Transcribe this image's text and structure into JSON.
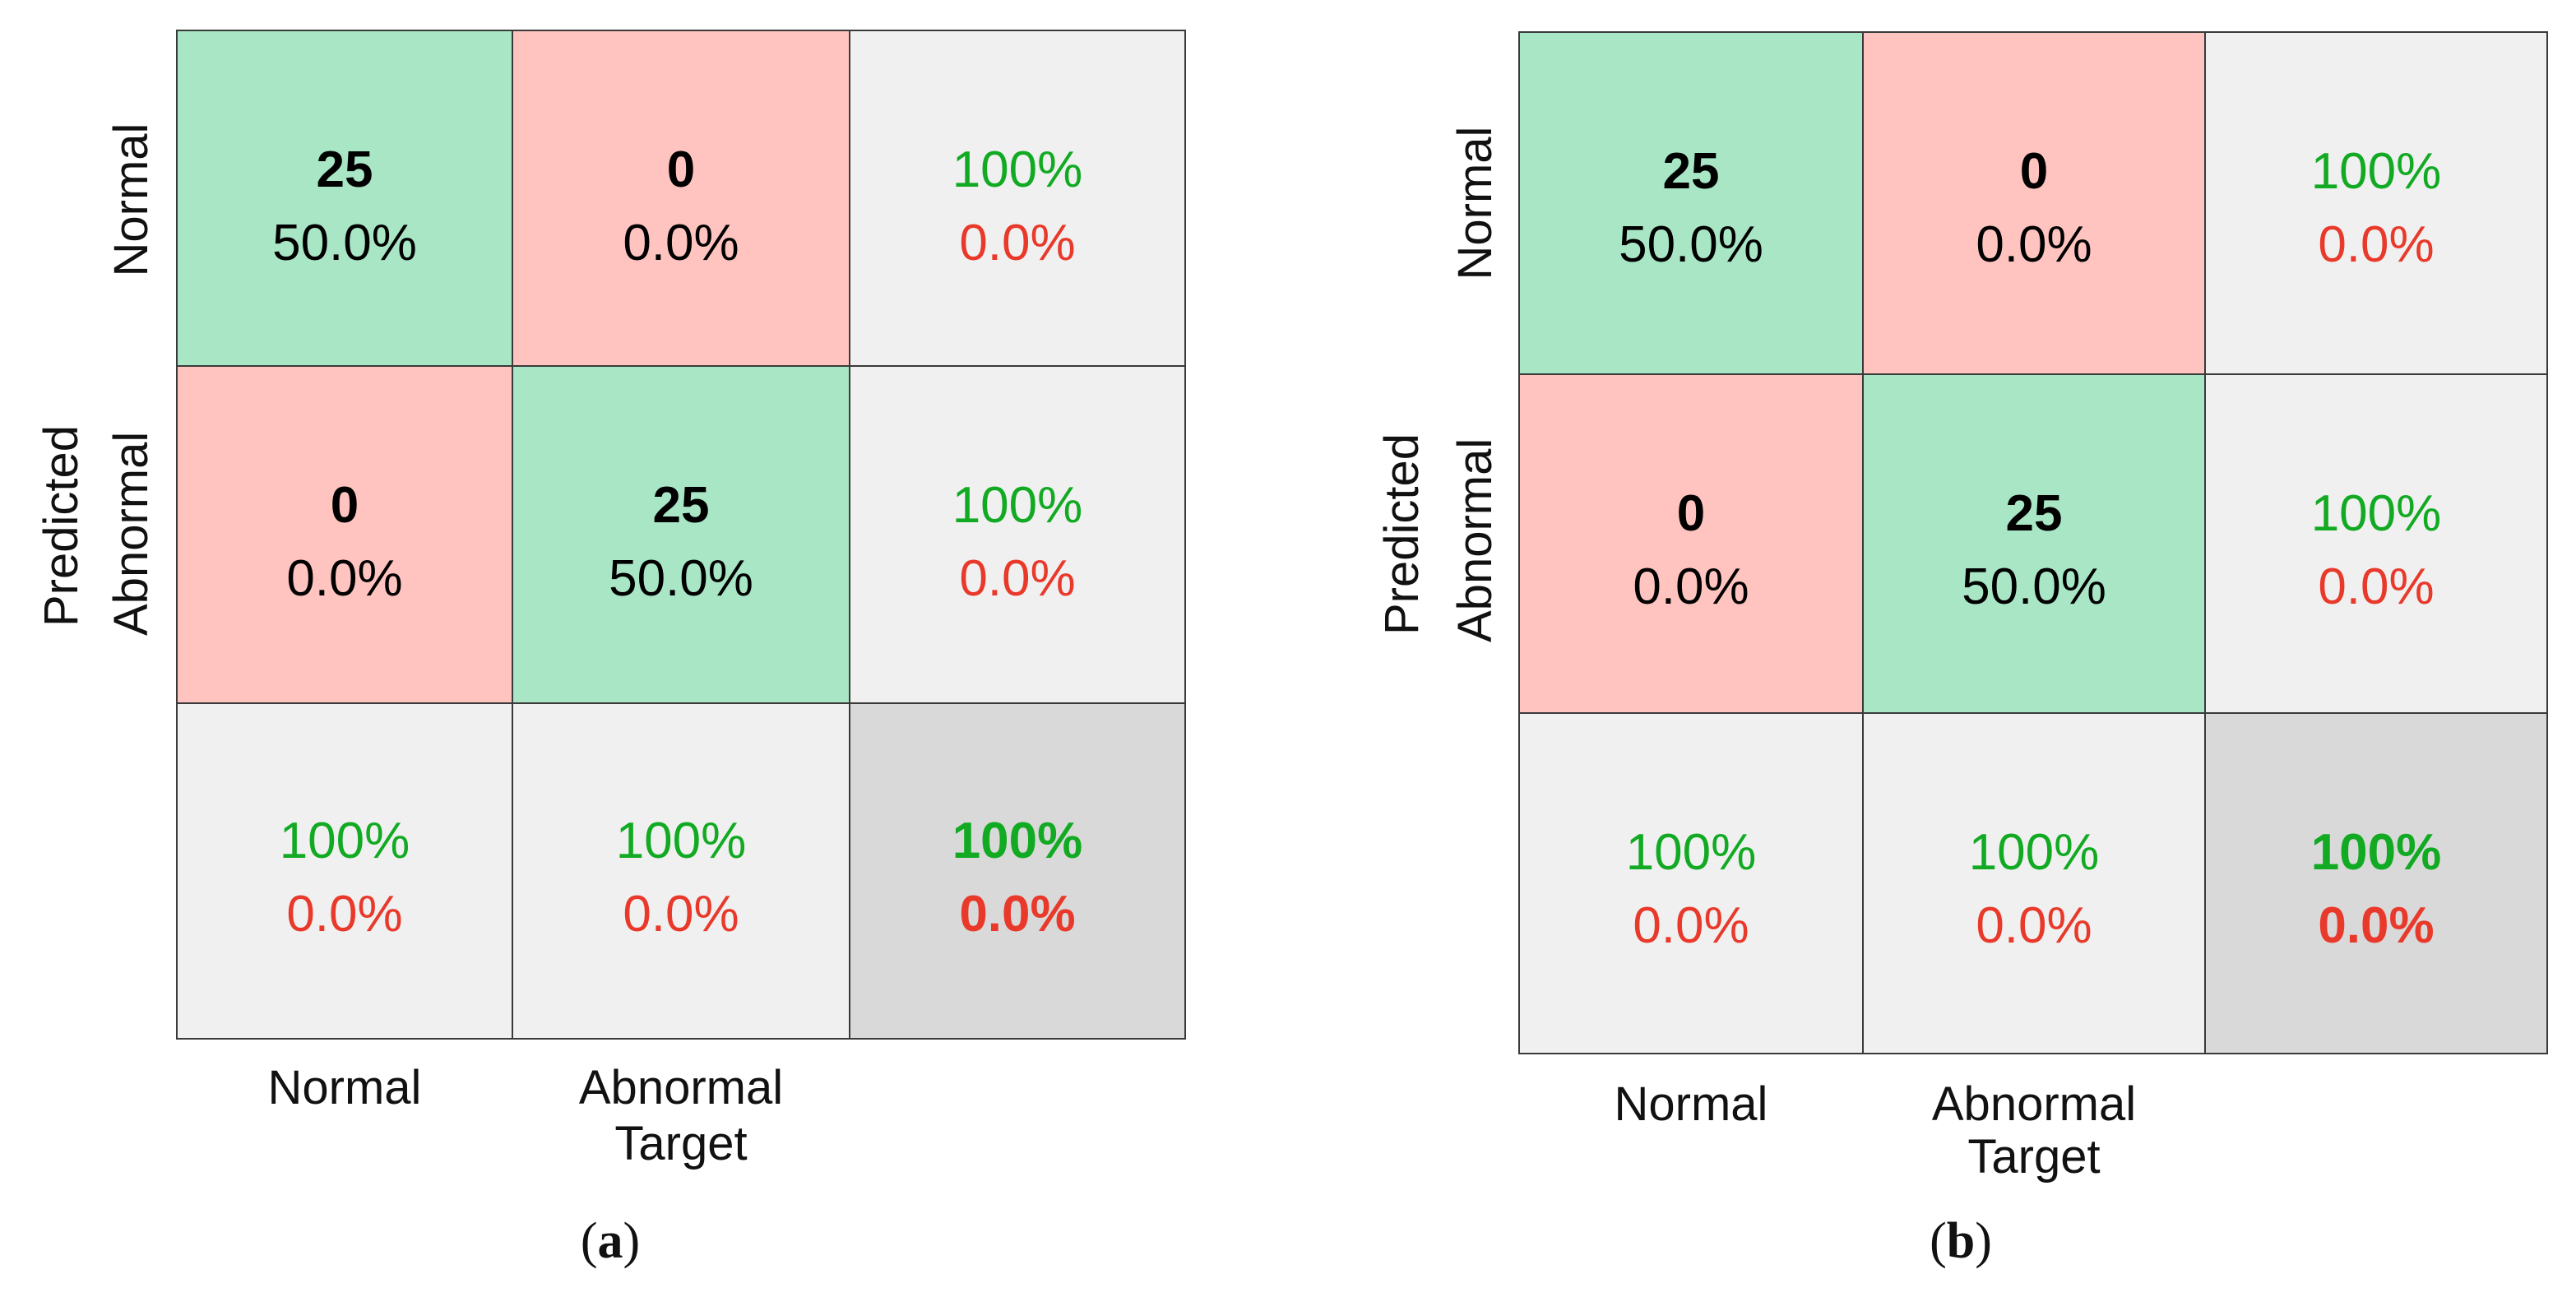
{
  "colors": {
    "correct_bg": "#a8e6c6",
    "incorrect_bg": "#ffc4c0",
    "summary_bg": "#f0f0f0",
    "overall_bg": "#d9d9d9",
    "green_text": "#11aa22",
    "red_text": "#e8392a"
  },
  "chart_data": [
    {
      "type": "table",
      "panel_label": "(a)",
      "panel_label_letter": "a",
      "ylabel": "Predicted",
      "xlabel": "Target",
      "row_labels": [
        "Normal",
        "Abnormal"
      ],
      "col_labels": [
        "Normal",
        "Abnormal"
      ],
      "matrix": [
        [
          {
            "count": "25",
            "percent": "50.0%"
          },
          {
            "count": "0",
            "percent": "0.0%"
          }
        ],
        [
          {
            "count": "0",
            "percent": "0.0%"
          },
          {
            "count": "25",
            "percent": "50.0%"
          }
        ]
      ],
      "row_summary": [
        {
          "correct": "100%",
          "incorrect": "0.0%"
        },
        {
          "correct": "100%",
          "incorrect": "0.0%"
        }
      ],
      "col_summary": [
        {
          "correct": "100%",
          "incorrect": "0.0%"
        },
        {
          "correct": "100%",
          "incorrect": "0.0%"
        }
      ],
      "overall": {
        "correct": "100%",
        "incorrect": "0.0%"
      }
    },
    {
      "type": "table",
      "panel_label": "(b)",
      "panel_label_letter": "b",
      "ylabel": "Predicted",
      "xlabel": "Target",
      "row_labels": [
        "Normal",
        "Abnormal"
      ],
      "col_labels": [
        "Normal",
        "Abnormal"
      ],
      "matrix": [
        [
          {
            "count": "25",
            "percent": "50.0%"
          },
          {
            "count": "0",
            "percent": "0.0%"
          }
        ],
        [
          {
            "count": "0",
            "percent": "0.0%"
          },
          {
            "count": "25",
            "percent": "50.0%"
          }
        ]
      ],
      "row_summary": [
        {
          "correct": "100%",
          "incorrect": "0.0%"
        },
        {
          "correct": "100%",
          "incorrect": "0.0%"
        }
      ],
      "col_summary": [
        {
          "correct": "100%",
          "incorrect": "0.0%"
        },
        {
          "correct": "100%",
          "incorrect": "0.0%"
        }
      ],
      "overall": {
        "correct": "100%",
        "incorrect": "0.0%"
      }
    }
  ]
}
